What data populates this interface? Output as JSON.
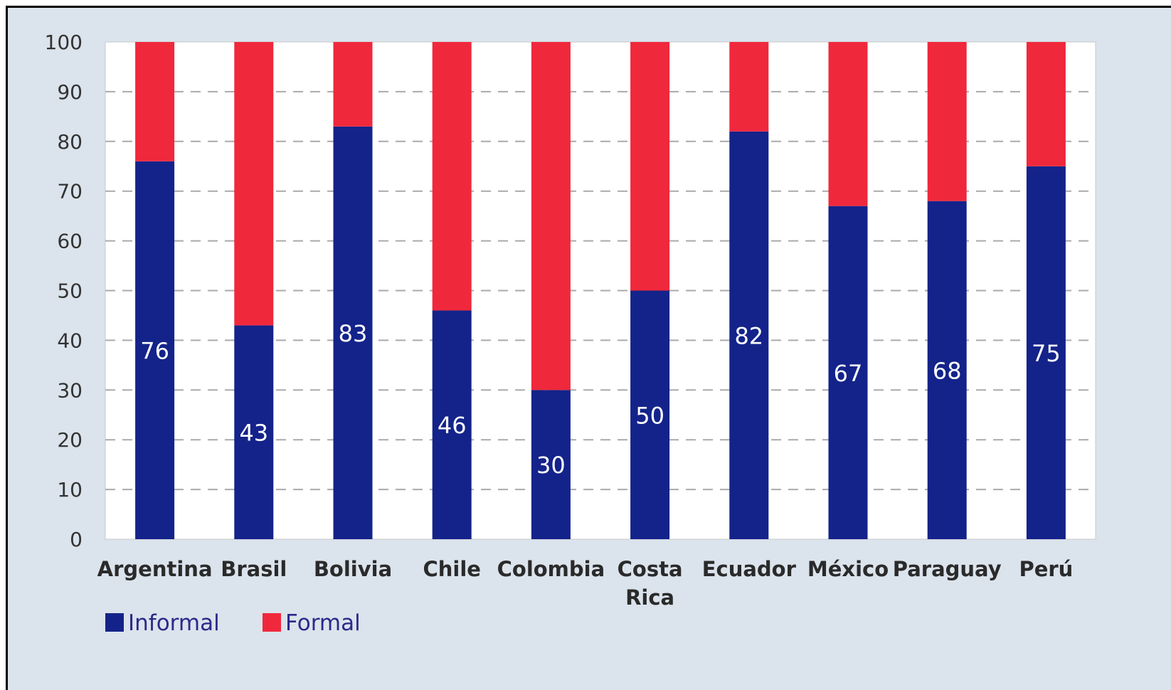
{
  "chart_data": {
    "type": "bar",
    "stacked": true,
    "categories": [
      "Argentina",
      "Brasil",
      "Bolivia",
      "Chile",
      "Colombia",
      "Costa Rica",
      "Ecuador",
      "México",
      "Paraguay",
      "Perú"
    ],
    "series": [
      {
        "name": "Informal",
        "color": "#14238a",
        "values": [
          76,
          43,
          83,
          46,
          30,
          50,
          82,
          67,
          68,
          75
        ]
      },
      {
        "name": "Formal",
        "color": "#f0283c",
        "values": [
          24,
          57,
          17,
          54,
          70,
          50,
          18,
          33,
          32,
          25
        ]
      }
    ],
    "data_labels": [
      "76",
      "43",
      "83",
      "46",
      "30",
      "50",
      "82",
      "67",
      "68",
      "75"
    ],
    "ylim": [
      0,
      100
    ],
    "yticks": [
      0,
      10,
      20,
      30,
      40,
      50,
      60,
      70,
      80,
      90,
      100
    ],
    "grid": true,
    "legend": "bottom-left"
  },
  "colors": {
    "background": "#dbe3ec",
    "plot": "#ffffff",
    "grid": "#aaaaaa"
  }
}
